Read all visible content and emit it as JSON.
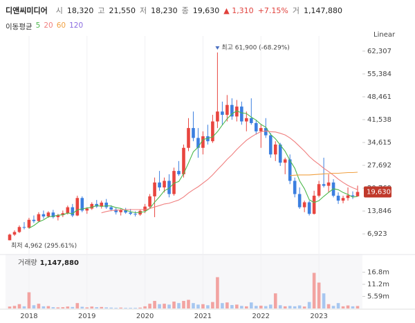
{
  "chart_data": {
    "type": "candlestick",
    "title": "디앤씨미디어",
    "stats": [
      {
        "label": "시",
        "value": "18,320"
      },
      {
        "label": "고",
        "value": "21,550"
      },
      {
        "label": "저",
        "value": "18,230"
      },
      {
        "label": "종",
        "value": "19,630"
      }
    ],
    "change": "▲ 1,310",
    "change_pct": "+7.15%",
    "volume_stat": {
      "label": "거",
      "value": "1,147,880"
    },
    "scale_label": "Linear",
    "up_color": "#e8453f",
    "down_color": "#3b7fe0",
    "up_volume_color": "#f2a3a1",
    "down_volume_color": "#a7c7f0",
    "categories": [
      null,
      null,
      null,
      null,
      "2018",
      null,
      null,
      null,
      null,
      null,
      null,
      null,
      null,
      null,
      null,
      null,
      "2019",
      null,
      null,
      null,
      null,
      null,
      null,
      null,
      null,
      null,
      null,
      null,
      "2020",
      null,
      null,
      null,
      null,
      null,
      null,
      null,
      null,
      null,
      null,
      null,
      "2021",
      null,
      null,
      null,
      null,
      null,
      null,
      null,
      null,
      null,
      null,
      null,
      "2022",
      null,
      null,
      null,
      null,
      null,
      null,
      null,
      null,
      null,
      null,
      null,
      "2023",
      null,
      null,
      null,
      null,
      null,
      null,
      null,
      null
    ],
    "open": [
      5000,
      6700,
      7500,
      9000,
      8800,
      11200,
      10800,
      12900,
      12200,
      13400,
      12000,
      12600,
      13200,
      15000,
      12500,
      17800,
      14000,
      14600,
      16000,
      15200,
      16400,
      15000,
      14300,
      13500,
      14100,
      13400,
      13000,
      12800,
      13900,
      15200,
      18300,
      22500,
      21000,
      23000,
      19000,
      26000,
      25000,
      33000,
      39000,
      36000,
      33000,
      36500,
      35000,
      41000,
      44000,
      43000,
      46000,
      42500,
      45500,
      41000,
      42000,
      40500,
      38000,
      39000,
      36800,
      31000,
      34000,
      28500,
      29500,
      23000,
      19000,
      15000,
      16500,
      13000,
      18500,
      22000,
      21500,
      22500,
      18500,
      17000,
      17800,
      18600,
      18320
    ],
    "high": [
      7000,
      8000,
      9500,
      10500,
      11800,
      12500,
      13500,
      14000,
      13800,
      14200,
      13000,
      14000,
      15500,
      16000,
      18500,
      18300,
      15000,
      16500,
      17200,
      17000,
      17500,
      15600,
      15000,
      14500,
      14800,
      14500,
      13800,
      14200,
      16000,
      19000,
      24000,
      26000,
      24000,
      25000,
      27000,
      29000,
      34000,
      42000,
      44000,
      39000,
      38000,
      40000,
      43000,
      61900,
      47000,
      49000,
      48000,
      47500,
      47000,
      44000,
      48000,
      41500,
      40000,
      42000,
      37500,
      35000,
      34500,
      30000,
      31000,
      24000,
      21000,
      17000,
      17000,
      20000,
      23000,
      30000,
      25000,
      23500,
      19500,
      18500,
      21000,
      19800,
      21550
    ],
    "low": [
      4962,
      6300,
      7200,
      8300,
      8500,
      10200,
      10500,
      11500,
      11800,
      11600,
      11000,
      12000,
      12800,
      12000,
      12300,
      13500,
      13000,
      14200,
      14800,
      14600,
      14500,
      13800,
      12800,
      12500,
      13000,
      12600,
      12200,
      12400,
      13200,
      14500,
      12000,
      20000,
      19500,
      18000,
      18500,
      24500,
      24000,
      32000,
      35000,
      30000,
      31000,
      34000,
      34500,
      39000,
      40000,
      41000,
      41500,
      41000,
      40000,
      38000,
      40000,
      37000,
      33000,
      36000,
      30000,
      29000,
      27500,
      25000,
      22000,
      18000,
      14500,
      13500,
      12500,
      12800,
      18000,
      21000,
      19500,
      18000,
      16000,
      16200,
      17000,
      17500,
      18230
    ],
    "close": [
      6700,
      7500,
      9000,
      8800,
      11200,
      10800,
      12900,
      12200,
      13400,
      12000,
      12600,
      13200,
      15000,
      12500,
      17800,
      14000,
      14600,
      16000,
      15200,
      16400,
      15000,
      14300,
      13500,
      14100,
      13400,
      13000,
      12800,
      13900,
      15200,
      18300,
      22500,
      21000,
      23000,
      19000,
      26000,
      25000,
      33000,
      39000,
      36000,
      33000,
      36500,
      35000,
      41000,
      44000,
      43000,
      46000,
      42500,
      45500,
      41000,
      42000,
      40500,
      38000,
      39000,
      36800,
      31000,
      34000,
      28500,
      29500,
      23000,
      19000,
      15000,
      16500,
      13000,
      18500,
      22000,
      21500,
      22500,
      18500,
      17000,
      17800,
      18600,
      18300,
      19630
    ],
    "volume": [
      900000,
      1200000,
      2000000,
      1000000,
      7500000,
      1500000,
      2200000,
      1000000,
      1100000,
      600000,
      500000,
      600000,
      900000,
      700000,
      2500000,
      800000,
      500000,
      900000,
      600000,
      700000,
      500000,
      400000,
      300000,
      400000,
      300000,
      300000,
      300000,
      400000,
      1000000,
      2200000,
      3500000,
      2000000,
      2200000,
      1800000,
      3200000,
      2500000,
      3500000,
      4000000,
      2500000,
      1800000,
      2000000,
      1500000,
      3000000,
      14500000,
      2500000,
      2800000,
      1600000,
      1800000,
      1200000,
      1000000,
      2800000,
      1200000,
      1300000,
      1100000,
      1800000,
      7000000,
      1500000,
      1000000,
      1200000,
      1000000,
      1400000,
      900000,
      3000000,
      16500000,
      12000000,
      7000000,
      2000000,
      1200000,
      2500000,
      1000000,
      1400000,
      1000000,
      1147880
    ],
    "ylim": [
      1300,
      64800
    ],
    "yticks": [
      {
        "value": 6923,
        "label": "6,923"
      },
      {
        "value": 13846,
        "label": "13,846"
      },
      {
        "value": 20769,
        "label": "20,769"
      },
      {
        "value": 27692,
        "label": "27,692"
      },
      {
        "value": 34615,
        "label": "34,615"
      },
      {
        "value": 41538,
        "label": "41,538"
      },
      {
        "value": 48461,
        "label": "48,461"
      },
      {
        "value": 55384,
        "label": "55,384"
      },
      {
        "value": 62307,
        "label": "62,307"
      }
    ],
    "volume_ylim": [
      0,
      23700000
    ],
    "volume_ticks": [
      {
        "value": 5590000,
        "label": "5.59m"
      },
      {
        "value": 11200000,
        "label": "11.2m"
      },
      {
        "value": 16800000,
        "label": "16.8m"
      }
    ],
    "volume_label": "거래량",
    "volume_value": "1,147,880",
    "current_price_label": "19,630",
    "max_annotation": "최고 61,900 (-68.29%)",
    "min_annotation": "최저 4,962 (295.61%)",
    "moving_averages": {
      "label": "이동평균",
      "lines": [
        {
          "name": "5",
          "color": "#4cb84c",
          "values": [
            null,
            null,
            null,
            null,
            8640,
            9460,
            10540,
            11180,
            12100,
            12260,
            12620,
            12680,
            13240,
            13060,
            14220,
            14500,
            14780,
            14980,
            15520,
            15240,
            15440,
            15380,
            14880,
            14660,
            14060,
            13660,
            13360,
            13440,
            13660,
            14640,
            16540,
            18180,
            20000,
            20760,
            22300,
            22800,
            25200,
            28400,
            31800,
            33200,
            35500,
            35900,
            36300,
            37900,
            39900,
            41800,
            43300,
            44200,
            43600,
            43400,
            42300,
            41400,
            40100,
            39260,
            37060,
            35760,
            33860,
            31960,
            29200,
            26800,
            23000,
            20600,
            17300,
            16400,
            17000,
            18300,
            19500,
            20600,
            20300,
            19460,
            18880,
            18040,
            18270
          ]
        },
        {
          "name": "20",
          "color": "#f07f7f",
          "values": [
            null,
            null,
            null,
            null,
            null,
            null,
            null,
            null,
            null,
            null,
            null,
            null,
            null,
            null,
            null,
            null,
            null,
            null,
            null,
            13300,
            13700,
            14000,
            14100,
            14200,
            14300,
            14300,
            14300,
            14300,
            14300,
            14600,
            15100,
            15500,
            16000,
            16200,
            16700,
            17200,
            18100,
            19300,
            20300,
            21200,
            22300,
            23400,
            24800,
            26400,
            27900,
            29500,
            30900,
            32500,
            33900,
            35300,
            36300,
            37200,
            37900,
            38100,
            37900,
            37800,
            37400,
            36900,
            36000,
            34800,
            33400,
            32000,
            30400,
            29100,
            28000,
            26800,
            25800,
            24700,
            23500,
            22500,
            21600,
            20900,
            20300
          ]
        },
        {
          "name": "60",
          "color": "#f0a040",
          "values": [
            null,
            null,
            null,
            null,
            null,
            null,
            null,
            null,
            null,
            null,
            null,
            null,
            null,
            null,
            null,
            null,
            null,
            null,
            null,
            null,
            null,
            null,
            null,
            null,
            null,
            null,
            null,
            null,
            null,
            null,
            null,
            null,
            null,
            null,
            null,
            null,
            null,
            null,
            null,
            null,
            null,
            null,
            null,
            null,
            null,
            null,
            null,
            null,
            null,
            null,
            null,
            null,
            null,
            null,
            null,
            null,
            null,
            null,
            24600,
            24700,
            24800,
            24800,
            24800,
            24900,
            25000,
            25100,
            25200,
            25300,
            25300,
            25400,
            25500,
            25500,
            25600
          ]
        },
        {
          "name": "120",
          "color": "#8a6be0"
        }
      ]
    }
  }
}
